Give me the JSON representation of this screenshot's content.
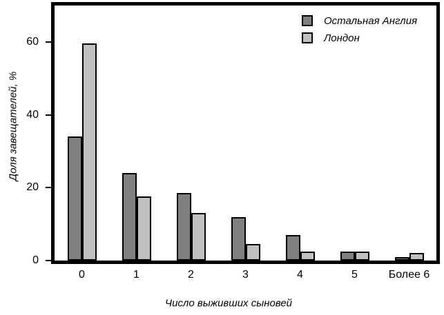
{
  "chart_data": {
    "type": "bar",
    "title": "",
    "categories": [
      "0",
      "1",
      "2",
      "3",
      "4",
      "5",
      "Более 6"
    ],
    "series": [
      {
        "name": "Остальная Англия",
        "color": "#808080",
        "values": [
          34,
          24,
          18.5,
          12,
          7,
          2.5,
          1
        ]
      },
      {
        "name": "Лондон",
        "color": "#c0c0c0",
        "values": [
          59.5,
          17.5,
          13,
          4.5,
          2.5,
          2.5,
          2
        ]
      }
    ],
    "xlabel": "Число выживших сыновей",
    "ylabel": "Доля завещателей, %",
    "ylim": [
      0,
      70
    ],
    "yticks": [
      0,
      20,
      40,
      60
    ],
    "legend_position": "top-right-inside",
    "grid": false,
    "bar_border_color": "#000000",
    "frame_color": "#000000",
    "background_color": "#ffffff"
  }
}
